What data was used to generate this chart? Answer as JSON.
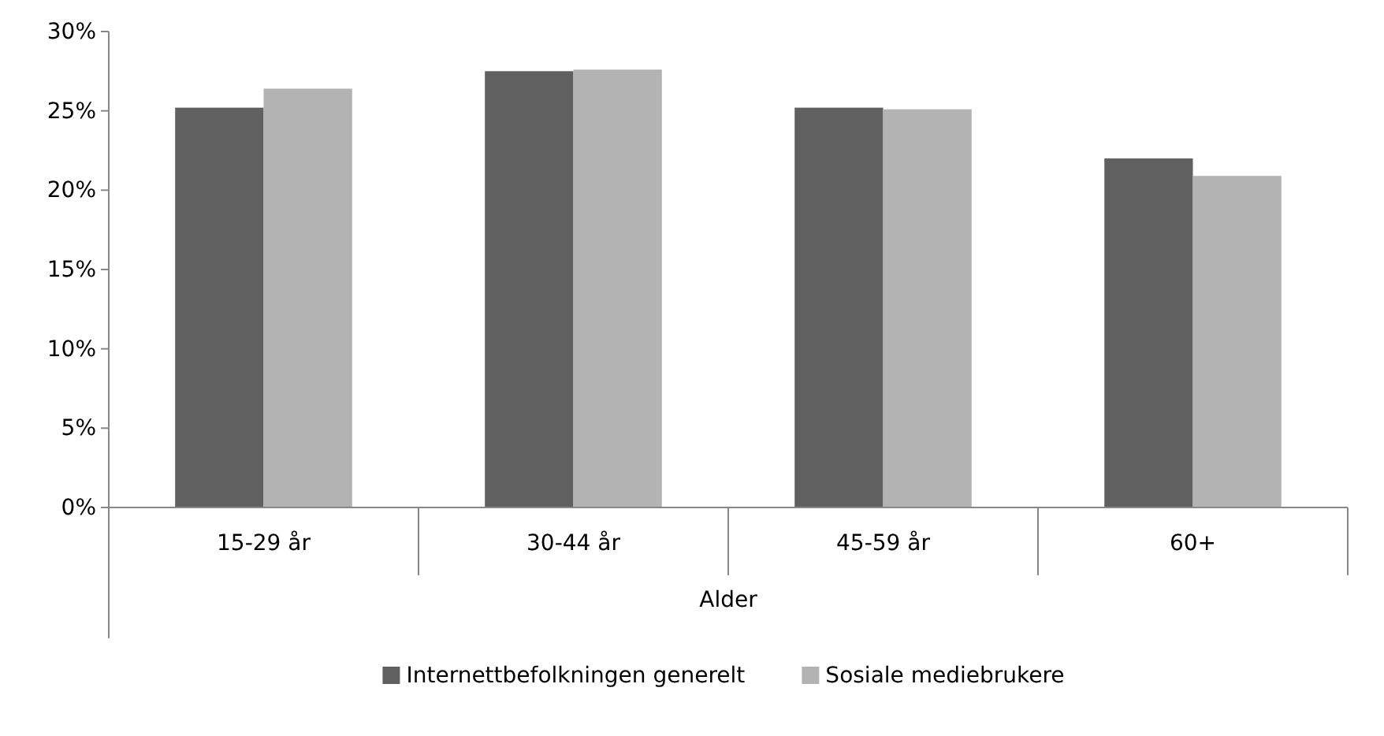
{
  "chart_data": {
    "type": "bar",
    "xlabel": "Alder",
    "categories": [
      "15-29 år",
      "30-44 år",
      "45-59 år",
      "60+"
    ],
    "series": [
      {
        "name": "Internettbefolkningen generelt",
        "color": "#606060",
        "values": [
          25.2,
          27.5,
          25.2,
          22.0
        ]
      },
      {
        "name": "Sosiale mediebrukere",
        "color": "#b3b3b3",
        "values": [
          26.4,
          27.6,
          25.1,
          20.9
        ]
      }
    ],
    "ylim": [
      0,
      30
    ],
    "yticks": [
      {
        "value": 0,
        "label": "0%"
      },
      {
        "value": 5,
        "label": "5%"
      },
      {
        "value": 10,
        "label": "10%"
      },
      {
        "value": 15,
        "label": "15%"
      },
      {
        "value": 20,
        "label": "20%"
      },
      {
        "value": 25,
        "label": "25%"
      },
      {
        "value": 30,
        "label": "30%"
      }
    ],
    "grid": false,
    "legend": "bottom"
  }
}
